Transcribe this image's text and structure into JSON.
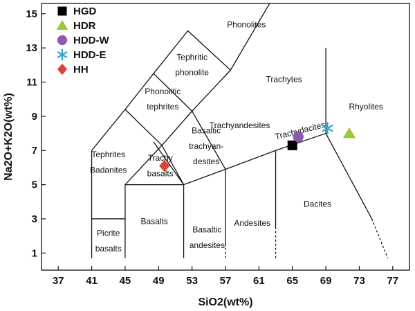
{
  "chart_data": {
    "type": "scatter",
    "xlabel": "SiO2(wt%)",
    "ylabel": "Na2O+K2O(wt%)",
    "xlim": [
      35,
      79
    ],
    "ylim": [
      0,
      15.6
    ],
    "x_ticks": [
      37,
      41,
      45,
      49,
      53,
      57,
      61,
      65,
      69,
      73,
      77
    ],
    "y_ticks": [
      1,
      3,
      5,
      7,
      9,
      11,
      13,
      15
    ],
    "legend_placement": "top-left",
    "series": [
      {
        "name": "HGD",
        "marker": "square",
        "color": "#000000",
        "points": [
          [
            65.0,
            7.3
          ]
        ]
      },
      {
        "name": "HDR",
        "marker": "triangle",
        "color": "#98c93c",
        "points": [
          [
            71.8,
            8.0
          ]
        ]
      },
      {
        "name": "HDD-W",
        "marker": "circle",
        "color": "#8a5cb0",
        "points": [
          [
            65.7,
            7.8
          ]
        ]
      },
      {
        "name": "HDD-E",
        "marker": "asterisk",
        "color": "#2aa6cf",
        "points": [
          [
            69.2,
            8.3
          ]
        ]
      },
      {
        "name": "HH",
        "marker": "diamond",
        "color": "#d9453a",
        "points": [
          [
            49.7,
            6.1
          ]
        ]
      }
    ],
    "field_lines": [
      [
        [
          41,
          0.7
        ],
        [
          41,
          7.0
        ],
        [
          45,
          9.4
        ],
        [
          48.4,
          11.5
        ],
        [
          52.5,
          14.0
        ],
        [
          57.6,
          11.7
        ],
        [
          63,
          16.2
        ]
      ],
      [
        [
          41,
          3.0
        ],
        [
          45,
          3.0
        ]
      ],
      [
        [
          45,
          0.7
        ],
        [
          45,
          5.0
        ],
        [
          49.4,
          7.3
        ],
        [
          53,
          9.3
        ],
        [
          57.6,
          11.7
        ]
      ],
      [
        [
          45,
          5.0
        ],
        [
          52,
          5.0
        ],
        [
          57,
          5.9
        ],
        [
          63,
          7.0
        ],
        [
          69,
          8.0
        ]
      ],
      [
        [
          52,
          0.7
        ],
        [
          52,
          5.0
        ],
        [
          48.4,
          7.5
        ]
      ],
      [
        [
          45,
          9.4
        ],
        [
          49.4,
          7.3
        ]
      ],
      [
        [
          48.4,
          11.5
        ],
        [
          53,
          9.3
        ]
      ],
      [
        [
          49.4,
          7.3
        ],
        [
          52,
          5.0
        ]
      ],
      [
        [
          53,
          9.3
        ],
        [
          57,
          5.9
        ]
      ],
      [
        [
          57,
          1.4
        ],
        [
          57,
          5.9
        ]
      ],
      [
        [
          63,
          2.4
        ],
        [
          63,
          7.0
        ]
      ],
      [
        [
          69,
          8.0
        ],
        [
          69,
          13.0
        ]
      ],
      [
        [
          69,
          8.0
        ],
        [
          74.5,
          3.0
        ]
      ]
    ],
    "dashed_lines": [
      [
        [
          57,
          0.7
        ],
        [
          57,
          1.4
        ]
      ],
      [
        [
          63,
          0.7
        ],
        [
          63,
          2.4
        ]
      ],
      [
        [
          74.5,
          3.0
        ],
        [
          76.4,
          0.7
        ]
      ]
    ],
    "fields": [
      {
        "label": "Phonolites",
        "x": 59.5,
        "y": 14.2
      },
      {
        "label": "Tephritic",
        "x": 53,
        "y": 12.3
      },
      {
        "label": "phonolite",
        "x": 53,
        "y": 11.4
      },
      {
        "label": "Phonolitic",
        "x": 49.5,
        "y": 10.3
      },
      {
        "label": "tephrites",
        "x": 49.5,
        "y": 9.4
      },
      {
        "label": "Trachytes",
        "x": 64,
        "y": 11.0
      },
      {
        "label": "Trachyandesites",
        "x": 58.7,
        "y": 8.3
      },
      {
        "label": "Trachydacites",
        "x": 66.0,
        "y": 8.0,
        "rotate": -14
      },
      {
        "label": "Rhyolites",
        "x": 73.8,
        "y": 9.4
      },
      {
        "label": "Basaltic",
        "x": 54.7,
        "y": 8.0
      },
      {
        "label": "trachyan-",
        "x": 54.7,
        "y": 7.1
      },
      {
        "label": "desites",
        "x": 54.7,
        "y": 6.2
      },
      {
        "label": "Tephrites",
        "x": 43.0,
        "y": 6.6
      },
      {
        "label": "Badanites",
        "x": 43.0,
        "y": 5.7
      },
      {
        "label": "Trachy",
        "x": 49.2,
        "y": 6.4
      },
      {
        "label": "basalts",
        "x": 49.2,
        "y": 5.5
      },
      {
        "label": "Dacites",
        "x": 68.0,
        "y": 3.7
      },
      {
        "label": "Andesites",
        "x": 60.2,
        "y": 2.6
      },
      {
        "label": "Basaltic",
        "x": 54.8,
        "y": 2.2
      },
      {
        "label": "andesites",
        "x": 54.8,
        "y": 1.3
      },
      {
        "label": "Basalts",
        "x": 48.5,
        "y": 2.7
      },
      {
        "label": "Picrite",
        "x": 43.0,
        "y": 2.0
      },
      {
        "label": "basalts",
        "x": 43.0,
        "y": 1.1
      }
    ]
  }
}
